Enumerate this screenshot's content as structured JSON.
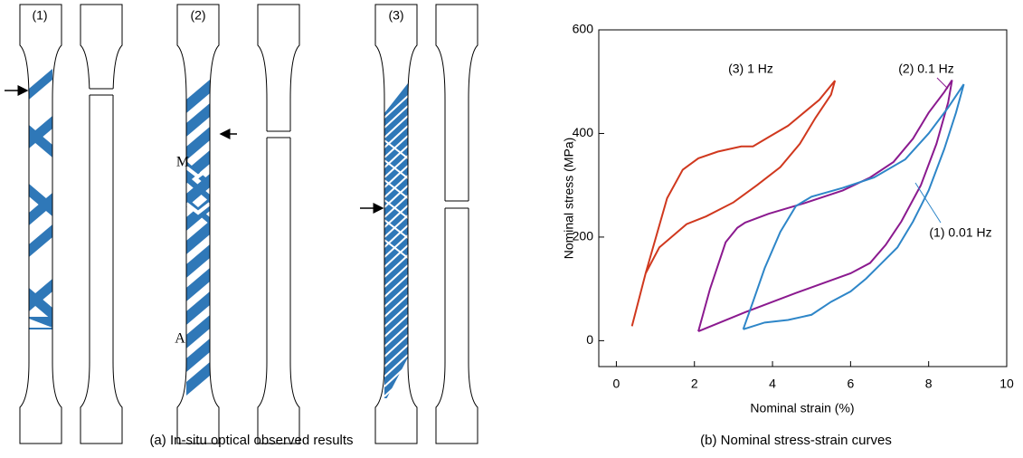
{
  "panel_a": {
    "specimens": [
      "(1)",
      "(2)",
      "(3)"
    ],
    "points": [
      "M",
      "A"
    ],
    "caption": "(a) In-situ optical observed results"
  },
  "chart_data": {
    "type": "line",
    "caption": "(b) Nominal stress-strain curves",
    "x_label": "Nominal strain (%)",
    "y_label": "Nominal stress (MPa)",
    "xlim": [
      -0.45,
      10
    ],
    "ylim": [
      -50,
      600
    ],
    "xticks": [
      0,
      2,
      4,
      6,
      8,
      10
    ],
    "yticks": [
      0,
      200,
      400,
      600
    ],
    "series": [
      {
        "name": "(3) 1 Hz",
        "color": "#d0381e",
        "x": [
          0.4,
          0.75,
          1.3,
          1.7,
          2.1,
          2.6,
          3.2,
          3.5,
          3.9,
          4.4,
          4.8,
          5.2,
          5.6,
          5.5,
          5.1,
          4.7,
          4.2,
          3.6,
          3.0,
          2.3,
          1.8,
          1.1,
          0.75,
          0.4
        ],
        "y": [
          28,
          130,
          275,
          330,
          352,
          365,
          375,
          375,
          393,
          415,
          440,
          465,
          502,
          475,
          430,
          380,
          335,
          300,
          267,
          240,
          225,
          180,
          130,
          28
        ]
      },
      {
        "name": "(2) 0.1 Hz",
        "color": "#8b1a8f",
        "x": [
          2.1,
          2.4,
          2.8,
          3.1,
          3.3,
          3.9,
          4.8,
          5.8,
          6.5,
          7.1,
          7.6,
          8.0,
          8.4,
          8.6,
          8.5,
          8.2,
          7.8,
          7.3,
          6.9,
          6.5,
          6.0,
          4.6,
          3.3,
          2.1
        ],
        "y": [
          18,
          100,
          190,
          218,
          228,
          245,
          265,
          290,
          315,
          345,
          390,
          440,
          480,
          503,
          460,
          380,
          300,
          230,
          185,
          150,
          130,
          92,
          55,
          18
        ]
      },
      {
        "name": "(1) 0.01 Hz",
        "color": "#2e86c8",
        "x": [
          3.25,
          3.5,
          3.8,
          4.2,
          4.6,
          5.0,
          5.8,
          6.6,
          7.4,
          8.0,
          8.5,
          8.9,
          8.7,
          8.4,
          8.0,
          7.6,
          7.2,
          6.8,
          6.4,
          6.0,
          5.5,
          5.0,
          4.4,
          3.8,
          3.25
        ],
        "y": [
          22,
          75,
          140,
          210,
          260,
          278,
          295,
          315,
          350,
          400,
          450,
          495,
          440,
          370,
          290,
          230,
          180,
          150,
          120,
          95,
          75,
          50,
          40,
          35,
          22
        ]
      }
    ]
  }
}
